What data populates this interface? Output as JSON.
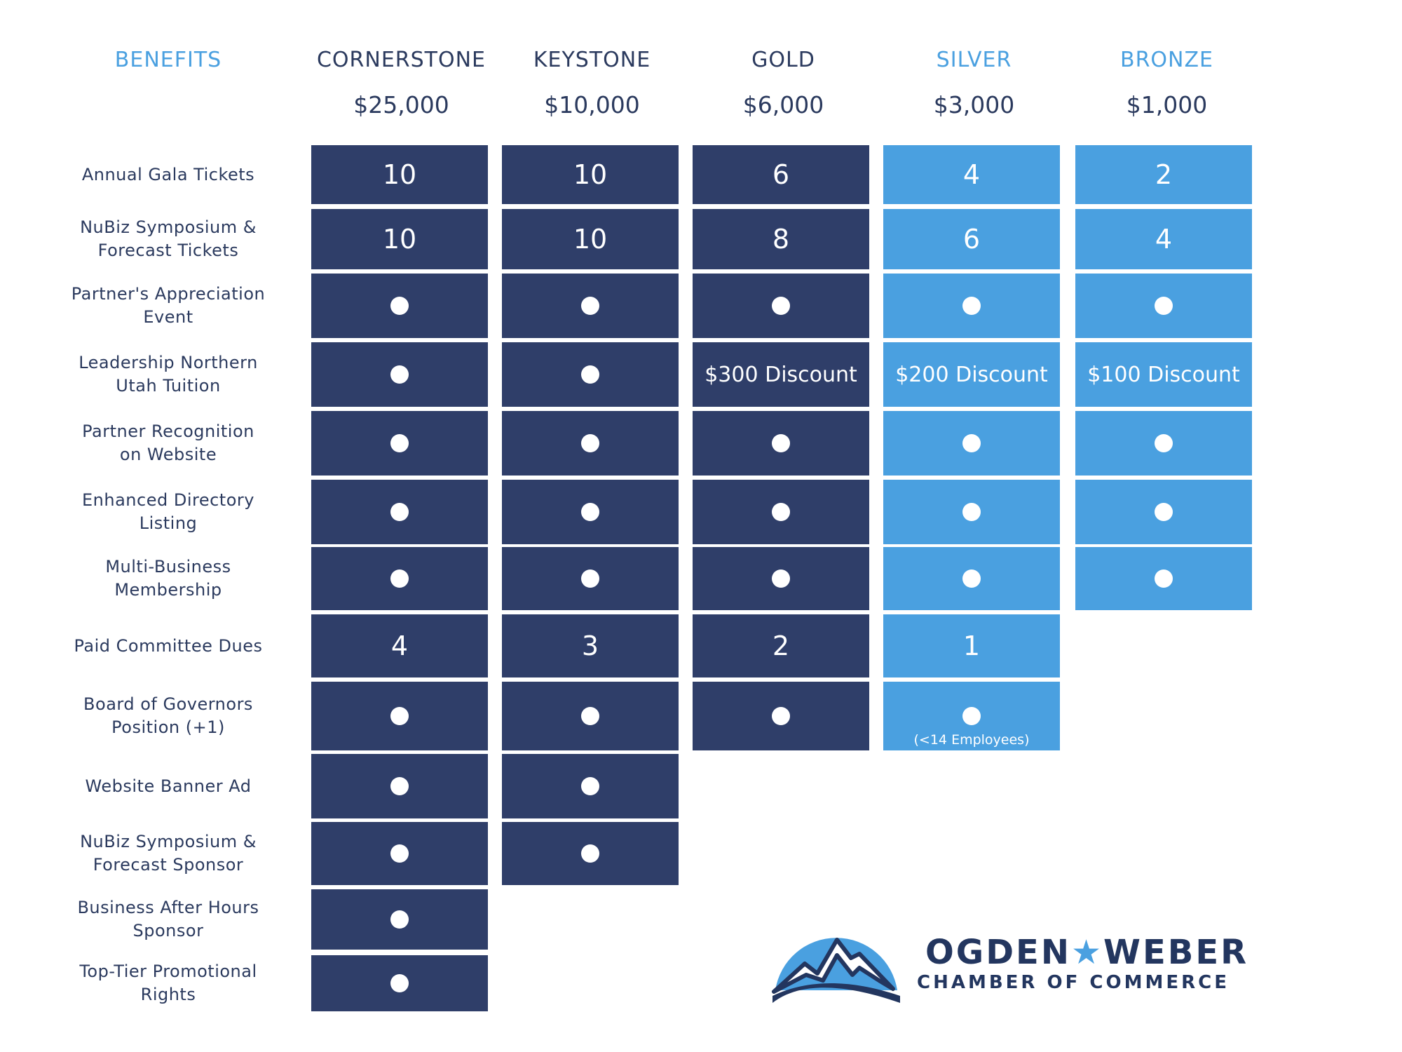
{
  "headers": {
    "benefits": "BENEFITS",
    "tiers": [
      {
        "name": "CORNERSTONE",
        "price": "$25,000"
      },
      {
        "name": "KEYSTONE",
        "price": "$10,000"
      },
      {
        "name": "GOLD",
        "price": "$6,000"
      },
      {
        "name": "SILVER",
        "price": "$3,000"
      },
      {
        "name": "BRONZE",
        "price": "$1,000"
      }
    ]
  },
  "rows": [
    {
      "label": "Annual Gala Tickets",
      "cells": [
        "10",
        "10",
        "6",
        "4",
        "2"
      ]
    },
    {
      "label": "NuBiz Symposium & Forecast Tickets",
      "cells": [
        "10",
        "10",
        "8",
        "6",
        "4"
      ]
    },
    {
      "label": "Partner's Appreciation Event",
      "cells": [
        "●",
        "●",
        "●",
        "●",
        "●"
      ]
    },
    {
      "label": "Leadership Northern Utah Tuition",
      "cells": [
        "●",
        "●",
        "$300 Discount",
        "$200 Discount",
        "$100 Discount"
      ]
    },
    {
      "label": "Partner Recognition on Website",
      "cells": [
        "●",
        "●",
        "●",
        "●",
        "●"
      ]
    },
    {
      "label": "Enhanced Directory Listing",
      "cells": [
        "●",
        "●",
        "●",
        "●",
        "●"
      ]
    },
    {
      "label": "Multi-Business Membership",
      "cells": [
        "●",
        "●",
        "●",
        "●",
        "●"
      ]
    },
    {
      "label": "Paid Committee Dues",
      "cells": [
        "4",
        "3",
        "2",
        "1",
        null
      ]
    },
    {
      "label": "Board of Governors Position (+1)",
      "cells": [
        "●",
        "●",
        "●",
        "●",
        null
      ]
    },
    {
      "label": "Website Banner Ad",
      "cells": [
        "●",
        "●",
        null,
        null,
        null
      ]
    },
    {
      "label": "NuBiz Symposium & Forecast Sponsor",
      "cells": [
        "●",
        "●",
        null,
        null,
        null
      ]
    },
    {
      "label": "Business After Hours Sponsor",
      "cells": [
        "●",
        null,
        null,
        null,
        null
      ]
    },
    {
      "label": "Top-Tier Promotional Rights",
      "cells": [
        "●",
        null,
        null,
        null,
        null
      ]
    }
  ],
  "notes": {
    "silver_board": "(<14 Employees)"
  },
  "logo": {
    "line1_left": "OGDEN",
    "star": "★",
    "line1_right": "WEBER",
    "line2": "CHAMBER OF COMMERCE"
  },
  "colors": {
    "dark": "#2f3e69",
    "light": "#4aa0e0",
    "label": "#2b3a5e",
    "accent": "#4aa0e0"
  }
}
